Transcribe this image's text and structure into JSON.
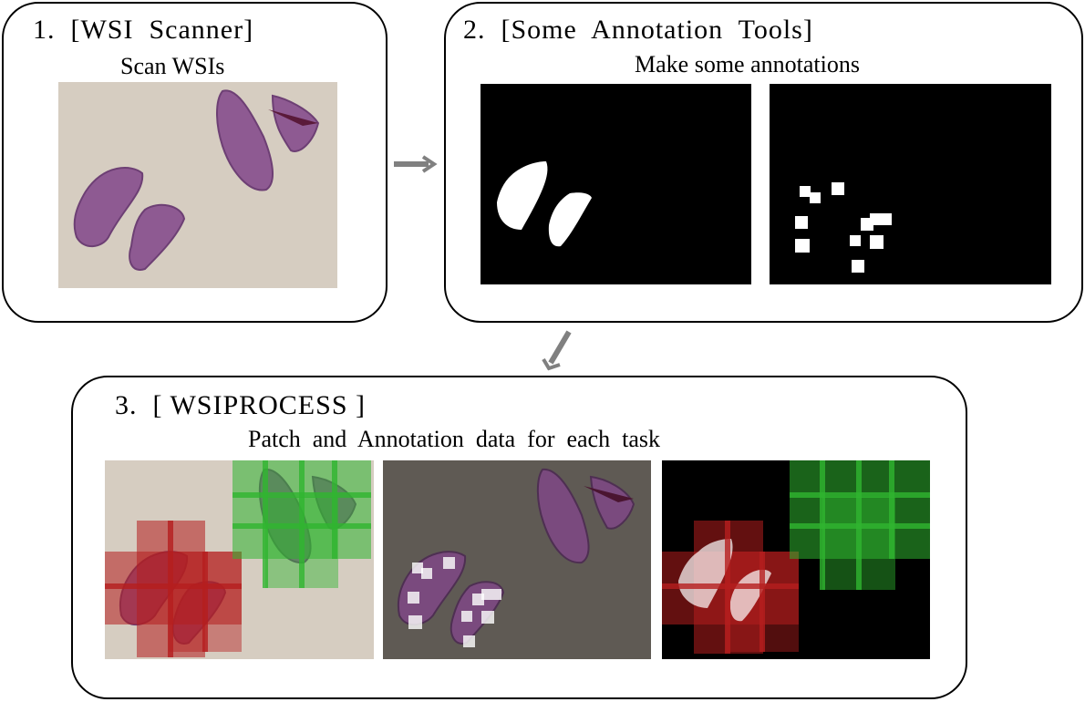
{
  "step1": {
    "title": "1.  [WSI  Scanner]",
    "subtitle": "Scan WSIs"
  },
  "step2": {
    "title": "2.  [Some  Annotation  Tools]",
    "subtitle": "Make some annotations"
  },
  "step3": {
    "title": "3.  [ WSIPROCESS ]",
    "subtitle": "Patch  and  Annotation  data  for  each  task"
  },
  "colors": {
    "slide_background": "#d6cdc1",
    "tissue": "#8e5a92",
    "dark_slide_background": "#5f5a54",
    "mask_background": "#000000",
    "mask_foreground": "#ffffff",
    "patch_red": "#b51e1e",
    "patch_green": "#2fb52f",
    "arrow": "#808080"
  }
}
